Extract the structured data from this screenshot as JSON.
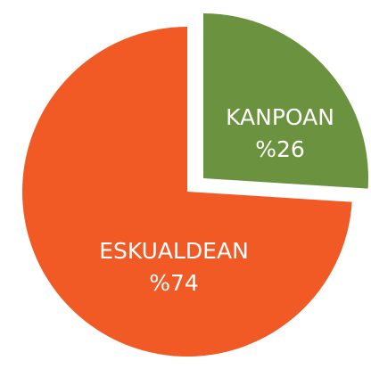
{
  "chart_data": {
    "type": "pie",
    "categories": [
      "KANPOAN",
      "ESKUALDEAN"
    ],
    "values": [
      26,
      74
    ],
    "value_labels": [
      "%26",
      "%74"
    ],
    "colors": [
      "#6b923e",
      "#f15a24"
    ]
  }
}
